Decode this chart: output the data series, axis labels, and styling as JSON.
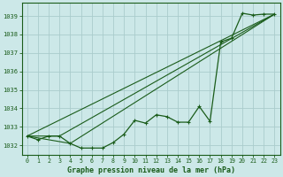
{
  "background_color": "#cce8e8",
  "grid_color": "#aacccc",
  "line_color": "#1a5c1a",
  "title": "Graphe pression niveau de la mer (hPa)",
  "xlim": [
    -0.5,
    23.5
  ],
  "ylim": [
    1031.5,
    1039.7
  ],
  "yticks": [
    1032,
    1033,
    1034,
    1035,
    1036,
    1037,
    1038,
    1039
  ],
  "xticks": [
    0,
    1,
    2,
    3,
    4,
    5,
    6,
    7,
    8,
    9,
    10,
    11,
    12,
    13,
    14,
    15,
    16,
    17,
    18,
    19,
    20,
    21,
    22,
    23
  ],
  "series_main": {
    "x": [
      0,
      1,
      2,
      3,
      4,
      5,
      6,
      7,
      8,
      9,
      10,
      11,
      12,
      13,
      14,
      15,
      16,
      17,
      18,
      19,
      20,
      21,
      22,
      23
    ],
    "y": [
      1032.5,
      1032.3,
      1032.5,
      1032.5,
      1032.1,
      1031.85,
      1031.85,
      1031.85,
      1032.15,
      1032.6,
      1033.35,
      1033.2,
      1033.65,
      1033.55,
      1033.25,
      1033.25,
      1034.1,
      1033.3,
      1037.6,
      1037.8,
      1039.15,
      1039.05,
      1039.1,
      1039.1
    ]
  },
  "series_line1": {
    "x": [
      0,
      23
    ],
    "y": [
      1032.5,
      1039.1
    ]
  },
  "series_line2": {
    "x": [
      0,
      3,
      23
    ],
    "y": [
      1032.5,
      1032.5,
      1039.1
    ]
  },
  "series_line3": {
    "x": [
      0,
      4,
      23
    ],
    "y": [
      1032.5,
      1032.1,
      1039.1
    ]
  }
}
